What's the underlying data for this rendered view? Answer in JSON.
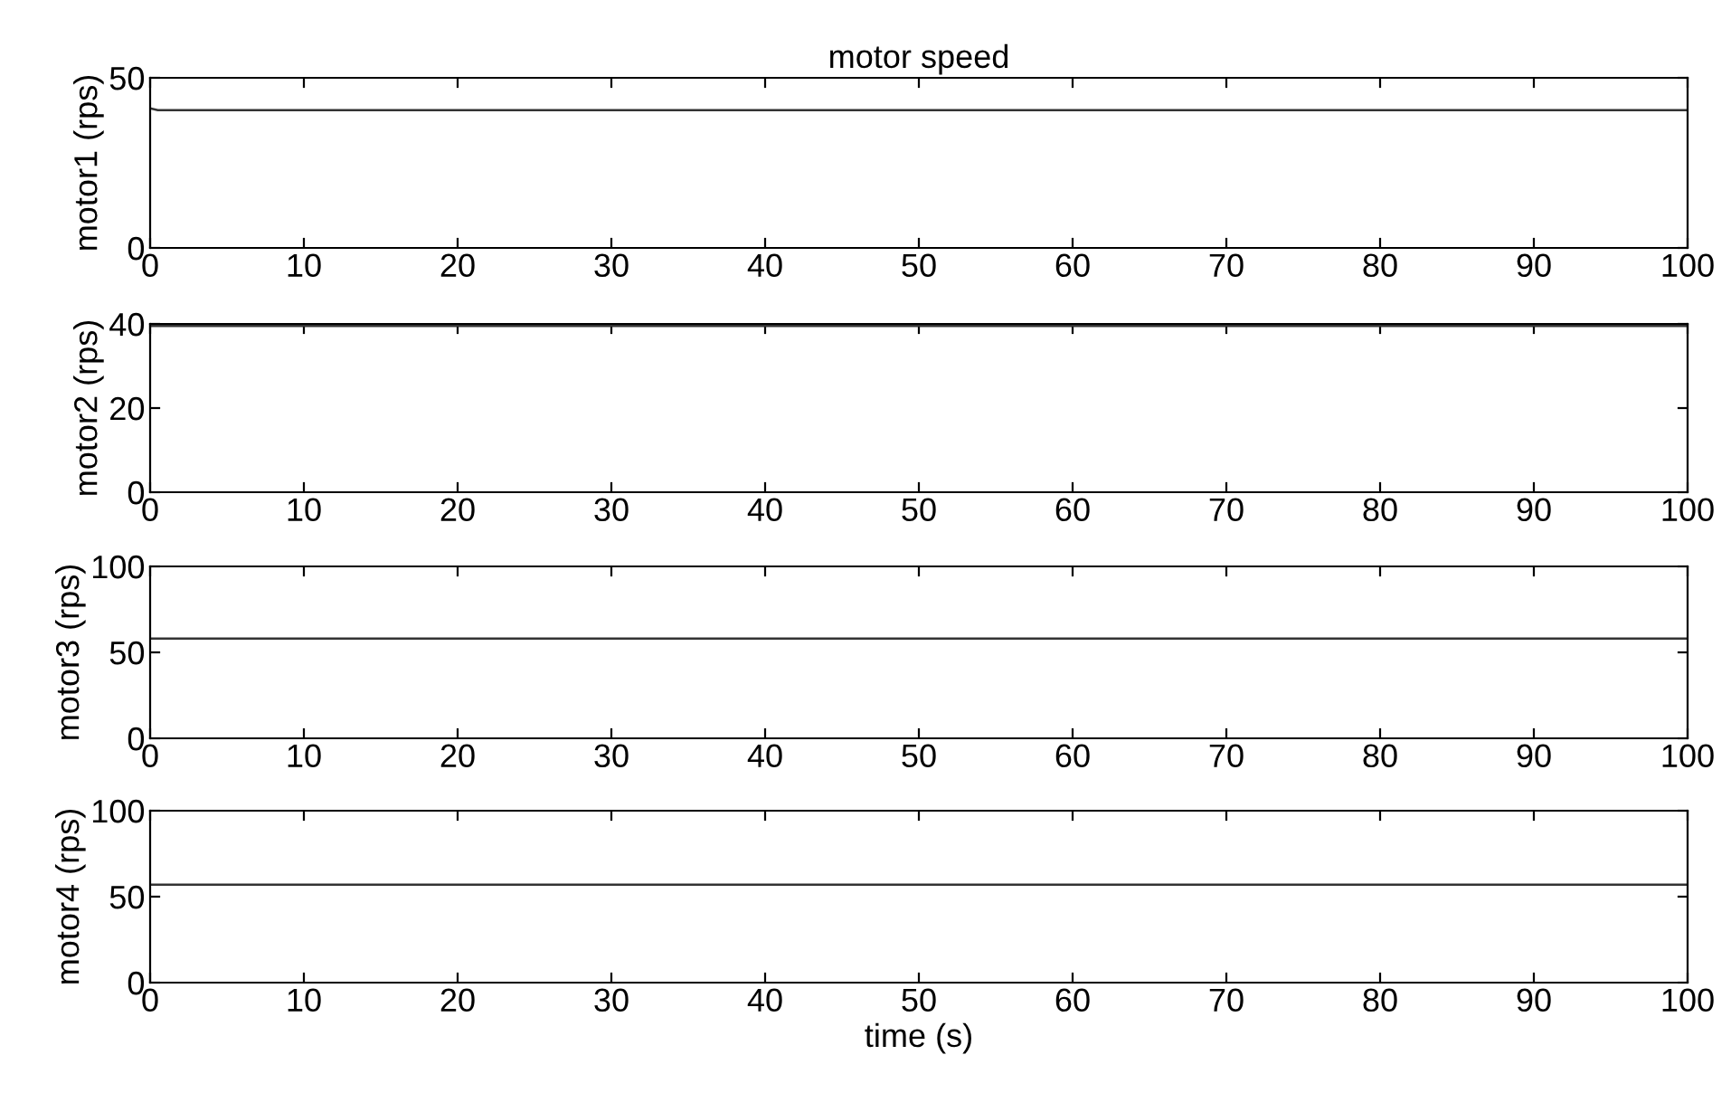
{
  "chart_data": [
    {
      "type": "line",
      "title": "motor speed",
      "ylabel": "motor1 (rps)",
      "x": [
        0,
        0.5,
        10,
        20,
        30,
        40,
        50,
        60,
        70,
        80,
        90,
        100
      ],
      "series": [
        {
          "color": "#333333",
          "values": [
            41,
            40.5,
            40.5,
            40.5,
            40.5,
            40.5,
            40.5,
            40.5,
            40.5,
            40.5,
            40.5,
            40.5
          ]
        }
      ],
      "xlim": [
        0,
        100
      ],
      "xticks": [
        0,
        10,
        20,
        30,
        40,
        50,
        60,
        70,
        80,
        90,
        100
      ],
      "ylim": [
        0,
        50
      ],
      "yticks": [
        0,
        50
      ]
    },
    {
      "type": "line",
      "ylabel": "motor2 (rps)",
      "x": [
        0,
        10,
        20,
        30,
        40,
        50,
        60,
        70,
        80,
        90,
        100
      ],
      "series": [
        {
          "color": "#333333",
          "values": [
            39.5,
            39.5,
            39.5,
            39.5,
            39.5,
            39.5,
            39.5,
            39.5,
            39.5,
            39.5,
            39.5
          ]
        }
      ],
      "xlim": [
        0,
        100
      ],
      "xticks": [
        0,
        10,
        20,
        30,
        40,
        50,
        60,
        70,
        80,
        90,
        100
      ],
      "ylim": [
        0,
        40
      ],
      "yticks": [
        0,
        20,
        40
      ]
    },
    {
      "type": "line",
      "ylabel": "motor3 (rps)",
      "x": [
        0,
        10,
        20,
        30,
        40,
        50,
        60,
        70,
        80,
        90,
        100
      ],
      "series": [
        {
          "color": "#333333",
          "values": [
            58,
            58,
            58,
            58,
            58,
            58,
            58,
            58,
            58,
            58,
            58
          ]
        }
      ],
      "xlim": [
        0,
        100
      ],
      "xticks": [
        0,
        10,
        20,
        30,
        40,
        50,
        60,
        70,
        80,
        90,
        100
      ],
      "ylim": [
        0,
        100
      ],
      "yticks": [
        0,
        50,
        100
      ]
    },
    {
      "type": "line",
      "xlabel": "time (s)",
      "ylabel": "motor4 (rps)",
      "x": [
        0,
        10,
        20,
        30,
        40,
        50,
        60,
        70,
        80,
        90,
        100
      ],
      "series": [
        {
          "color": "#333333",
          "values": [
            57,
            57,
            57,
            57,
            57,
            57,
            57,
            57,
            57,
            57,
            57
          ]
        }
      ],
      "xlim": [
        0,
        100
      ],
      "xticks": [
        0,
        10,
        20,
        30,
        40,
        50,
        60,
        70,
        80,
        90,
        100
      ],
      "ylim": [
        0,
        100
      ],
      "yticks": [
        0,
        50,
        100
      ]
    }
  ]
}
